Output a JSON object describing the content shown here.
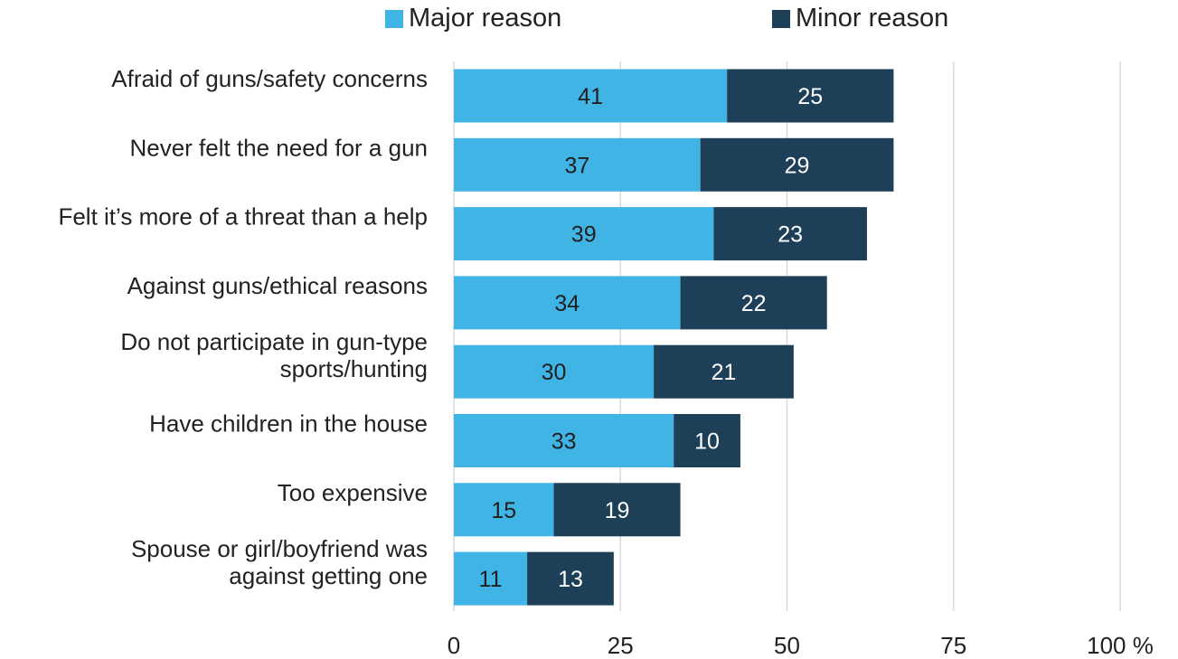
{
  "chart_data": {
    "type": "bar",
    "orientation": "horizontal",
    "stacked": true,
    "categories": [
      "Afraid of guns/safety concerns",
      "Never felt the need for a gun",
      "Felt it’s more of a threat than a help",
      "Against guns/ethical reasons",
      "Do not participate in gun-type sports/hunting",
      "Have children in the house",
      "Too expensive",
      "Spouse or girl/boyfriend was against getting one"
    ],
    "category_lines": [
      [
        "Afraid of guns/safety concerns"
      ],
      [
        "Never felt the need for a gun"
      ],
      [
        "Felt it’s more of a threat than a help"
      ],
      [
        "Against guns/ethical reasons"
      ],
      [
        "Do not participate in gun-type",
        "sports/hunting"
      ],
      [
        "Have children in the house"
      ],
      [
        "Too expensive"
      ],
      [
        "Spouse or girl/boyfriend was",
        "against getting one"
      ]
    ],
    "series": [
      {
        "name": "Major reason",
        "color": "#41b4e6",
        "label_color": "#1f1f1f",
        "values": [
          41,
          37,
          39,
          34,
          30,
          33,
          15,
          11
        ]
      },
      {
        "name": "Minor reason",
        "color": "#1d3f58",
        "label_color": "#ffffff",
        "values": [
          25,
          29,
          23,
          22,
          21,
          10,
          19,
          13
        ]
      }
    ],
    "xlim": [
      0,
      100
    ],
    "xticks": [
      "0",
      "25",
      "50",
      "75",
      "100 %"
    ],
    "xtick_values": [
      0,
      25,
      50,
      75,
      100
    ],
    "grid": true,
    "legend_position": "top"
  }
}
